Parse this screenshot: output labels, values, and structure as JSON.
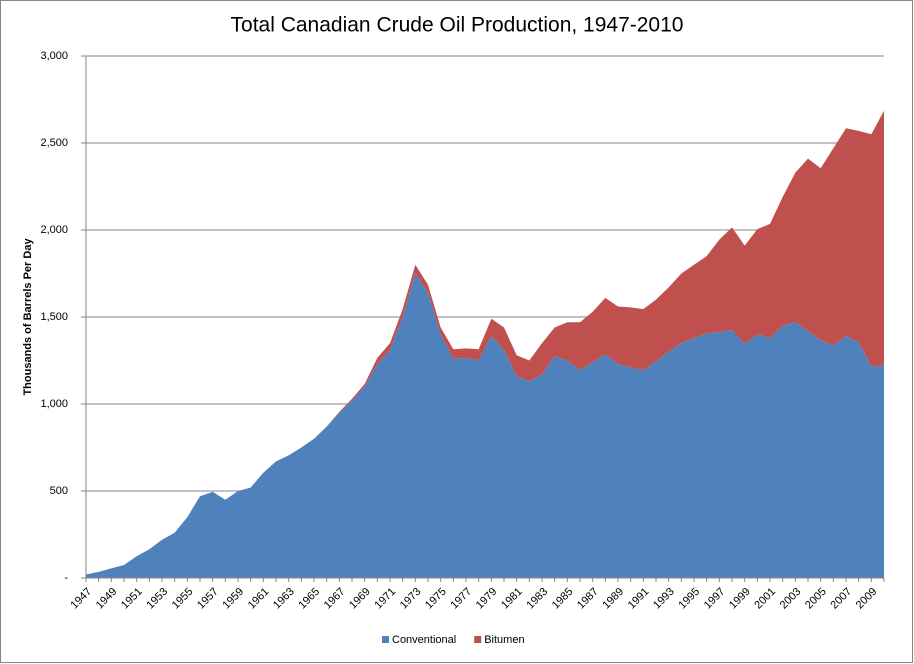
{
  "chart_data": {
    "type": "stacked_area",
    "title": "Total Canadian Crude Oil Production, 1947-2010",
    "y_label": "Thousands  of Barrels Per Day",
    "categories": [
      "1947",
      null,
      "1949",
      null,
      "1951",
      null,
      "1953",
      null,
      "1955",
      null,
      "1957",
      null,
      "1959",
      null,
      "1961",
      null,
      "1963",
      null,
      "1965",
      null,
      "1967",
      null,
      "1969",
      null,
      "1971",
      null,
      "1973",
      null,
      "1975",
      null,
      "1977",
      null,
      "1979",
      null,
      "1981",
      null,
      "1983",
      null,
      "1985",
      null,
      "1987",
      null,
      "1989",
      null,
      "1991",
      null,
      "1993",
      null,
      "1995",
      null,
      "1997",
      null,
      "1999",
      null,
      "2001",
      null,
      "2003",
      null,
      "2005",
      null,
      "2007",
      null,
      "2009",
      null
    ],
    "series": [
      {
        "name": "Conventional",
        "color": "#4f81bd",
        "values": [
          20,
          35,
          55,
          75,
          125,
          165,
          220,
          260,
          350,
          470,
          495,
          450,
          500,
          520,
          605,
          670,
          705,
          750,
          800,
          870,
          950,
          1020,
          1100,
          1230,
          1310,
          1500,
          1750,
          1640,
          1400,
          1260,
          1265,
          1250,
          1390,
          1310,
          1160,
          1130,
          1170,
          1275,
          1250,
          1195,
          1240,
          1285,
          1230,
          1210,
          1195,
          1245,
          1300,
          1350,
          1380,
          1405,
          1415,
          1425,
          1345,
          1400,
          1380,
          1450,
          1470,
          1420,
          1365,
          1340,
          1390,
          1355,
          1215,
          1225
        ]
      },
      {
        "name": "Bitumen",
        "color": "#c0504d",
        "values": [
          0,
          0,
          0,
          0,
          0,
          0,
          0,
          0,
          0,
          0,
          0,
          0,
          0,
          0,
          0,
          0,
          0,
          0,
          0,
          0,
          5,
          10,
          15,
          35,
          40,
          45,
          50,
          45,
          40,
          55,
          55,
          65,
          100,
          130,
          120,
          120,
          180,
          165,
          220,
          275,
          290,
          325,
          330,
          345,
          350,
          355,
          370,
          400,
          420,
          445,
          530,
          590,
          565,
          605,
          655,
          740,
          860,
          990,
          990,
          1130,
          1195,
          1215,
          1335,
          1460
        ]
      }
    ],
    "ylim": [
      0,
      3000
    ],
    "yticks": [
      {
        "value": 0,
        "label": "-"
      },
      500,
      {
        "value": 1000,
        "label": "1,000"
      },
      {
        "value": 1500,
        "label": "1,500"
      },
      {
        "value": 2000,
        "label": "2,000"
      },
      {
        "value": 2500,
        "label": "2,500"
      },
      {
        "value": 3000,
        "label": "3,000"
      }
    ],
    "grid": true,
    "legend": "bottom"
  }
}
